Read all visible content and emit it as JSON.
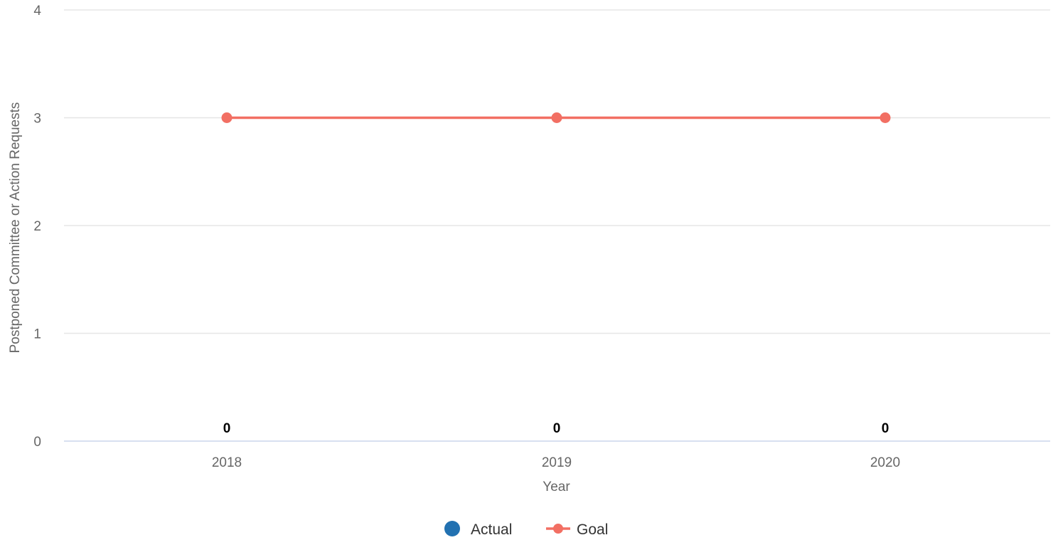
{
  "chart_data": {
    "type": "line",
    "categories": [
      "2018",
      "2019",
      "2020"
    ],
    "xlabel": "Year",
    "ylabel": "Postponed Committee or Action Requests",
    "ylim": [
      0,
      4
    ],
    "yticks": [
      "0",
      "1",
      "2",
      "3",
      "4"
    ],
    "grid": true,
    "legend_position": "bottom-center",
    "series": [
      {
        "name": "Actual",
        "kind": "column",
        "values": [
          0,
          0,
          0
        ],
        "data_labels": [
          "0",
          "0",
          "0"
        ],
        "color": "#2271b1"
      },
      {
        "name": "Goal",
        "kind": "line",
        "values": [
          3,
          3,
          3
        ],
        "color": "#f26f63"
      }
    ]
  }
}
